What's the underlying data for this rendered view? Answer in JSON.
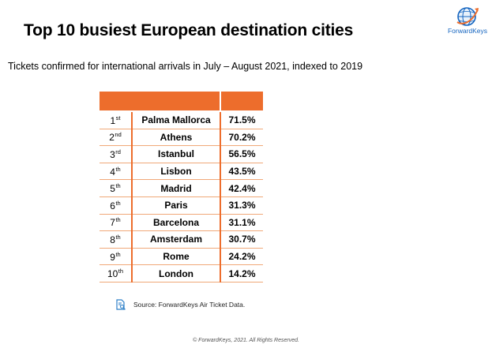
{
  "header": {
    "title": "Top 10 busiest European destination cities",
    "subtitle": "Tickets confirmed for international arrivals in July – August 2021, indexed to 2019"
  },
  "logo": {
    "text": "ForwardKeys",
    "icon": "globe-icon"
  },
  "chart_data": {
    "type": "table",
    "title": "Top 10 busiest European destination cities",
    "subtitle": "Tickets confirmed for international arrivals in July – August 2021, indexed to 2019",
    "columns": [
      "",
      "",
      ""
    ],
    "rows": [
      {
        "rank": "1",
        "suffix": "st",
        "city": "Palma Mallorca",
        "value": "71.5%"
      },
      {
        "rank": "2",
        "suffix": "nd",
        "city": "Athens",
        "value": "70.2%"
      },
      {
        "rank": "3",
        "suffix": "rd",
        "city": "Istanbul",
        "value": "56.5%"
      },
      {
        "rank": "4",
        "suffix": "th",
        "city": "Lisbon",
        "value": "43.5%"
      },
      {
        "rank": "5",
        "suffix": "th",
        "city": "Madrid",
        "value": "42.4%"
      },
      {
        "rank": "6",
        "suffix": "th",
        "city": "Paris",
        "value": "31.3%"
      },
      {
        "rank": "7",
        "suffix": "th",
        "city": "Barcelona",
        "value": "31.1%"
      },
      {
        "rank": "8",
        "suffix": "th",
        "city": "Amsterdam",
        "value": "30.7%"
      },
      {
        "rank": "9",
        "suffix": "th",
        "city": "Rome",
        "value": "24.2%"
      },
      {
        "rank": "10",
        "suffix": "th",
        "city": "London",
        "value": "14.2%"
      }
    ]
  },
  "colors": {
    "accent": "#ed6d2c",
    "row_line": "#f0a878",
    "brand_blue": "#1565c0"
  },
  "footer": {
    "source": "Source: ForwardKeys Air Ticket Data.",
    "source_icon": "document-search-icon",
    "copyright": "© ForwardKeys, 2021. All Rights Reserved."
  }
}
